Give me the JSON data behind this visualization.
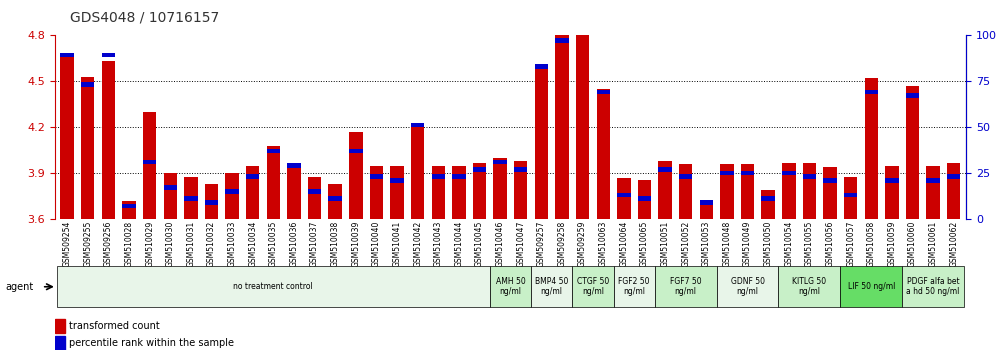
{
  "title": "GDS4048 / 10716157",
  "samples": [
    "GSM509254",
    "GSM509255",
    "GSM509256",
    "GSM510028",
    "GSM510029",
    "GSM510030",
    "GSM510031",
    "GSM510032",
    "GSM510033",
    "GSM510034",
    "GSM510035",
    "GSM510036",
    "GSM510037",
    "GSM510038",
    "GSM510039",
    "GSM510040",
    "GSM510041",
    "GSM510042",
    "GSM510043",
    "GSM510044",
    "GSM510045",
    "GSM510046",
    "GSM510047",
    "GSM509257",
    "GSM509258",
    "GSM509259",
    "GSM510063",
    "GSM510064",
    "GSM510065",
    "GSM510051",
    "GSM510052",
    "GSM510053",
    "GSM510048",
    "GSM510049",
    "GSM510050",
    "GSM510054",
    "GSM510055",
    "GSM510056",
    "GSM510057",
    "GSM510058",
    "GSM510059",
    "GSM510060",
    "GSM510061",
    "GSM510062"
  ],
  "transformed_count": [
    4.68,
    4.53,
    4.63,
    3.72,
    4.3,
    3.9,
    3.88,
    3.83,
    3.9,
    3.95,
    4.08,
    3.97,
    3.88,
    3.83,
    4.17,
    3.95,
    3.95,
    4.2,
    3.95,
    3.95,
    3.97,
    4.0,
    3.98,
    4.58,
    4.82,
    4.97,
    4.45,
    3.87,
    3.86,
    3.98,
    3.96,
    3.73,
    3.96,
    3.96,
    3.79,
    3.97,
    3.97,
    3.94,
    3.88,
    4.52,
    3.95,
    4.47,
    3.95,
    3.97
  ],
  "percentile": [
    88,
    72,
    88,
    6,
    30,
    16,
    10,
    8,
    14,
    22,
    36,
    28,
    14,
    10,
    36,
    22,
    20,
    50,
    22,
    22,
    26,
    30,
    26,
    82,
    96,
    100,
    68,
    12,
    10,
    26,
    22,
    8,
    24,
    24,
    10,
    24,
    22,
    20,
    12,
    68,
    20,
    66,
    20,
    22
  ],
  "groups": [
    {
      "label": "no treatment control",
      "start": 0,
      "end": 21,
      "color": "#e8f5e9"
    },
    {
      "label": "AMH 50\nng/ml",
      "start": 21,
      "end": 23,
      "color": "#c8f0c8"
    },
    {
      "label": "BMP4 50\nng/ml",
      "start": 23,
      "end": 25,
      "color": "#e8f5e9"
    },
    {
      "label": "CTGF 50\nng/ml",
      "start": 25,
      "end": 27,
      "color": "#c8f0c8"
    },
    {
      "label": "FGF2 50\nng/ml",
      "start": 27,
      "end": 29,
      "color": "#e8f5e9"
    },
    {
      "label": "FGF7 50\nng/ml",
      "start": 29,
      "end": 32,
      "color": "#c8f0c8"
    },
    {
      "label": "GDNF 50\nng/ml",
      "start": 32,
      "end": 35,
      "color": "#e8f5e9"
    },
    {
      "label": "KITLG 50\nng/ml",
      "start": 35,
      "end": 38,
      "color": "#c8f0c8"
    },
    {
      "label": "LIF 50 ng/ml",
      "start": 38,
      "end": 41,
      "color": "#66dd66"
    },
    {
      "label": "PDGF alfa bet\na hd 50 ng/ml",
      "start": 41,
      "end": 44,
      "color": "#c8f0c8"
    }
  ],
  "ylim_left": [
    3.6,
    4.8
  ],
  "ylim_right": [
    0,
    100
  ],
  "yticks_left": [
    3.6,
    3.9,
    4.2,
    4.5,
    4.8
  ],
  "yticks_right": [
    0,
    25,
    50,
    75,
    100
  ],
  "bar_color": "#cc0000",
  "percentile_color": "#0000cc",
  "bar_width": 0.65,
  "background_color": "#ffffff",
  "title_color": "#000000",
  "left_axis_color": "#cc0000",
  "right_axis_color": "#0000cc"
}
